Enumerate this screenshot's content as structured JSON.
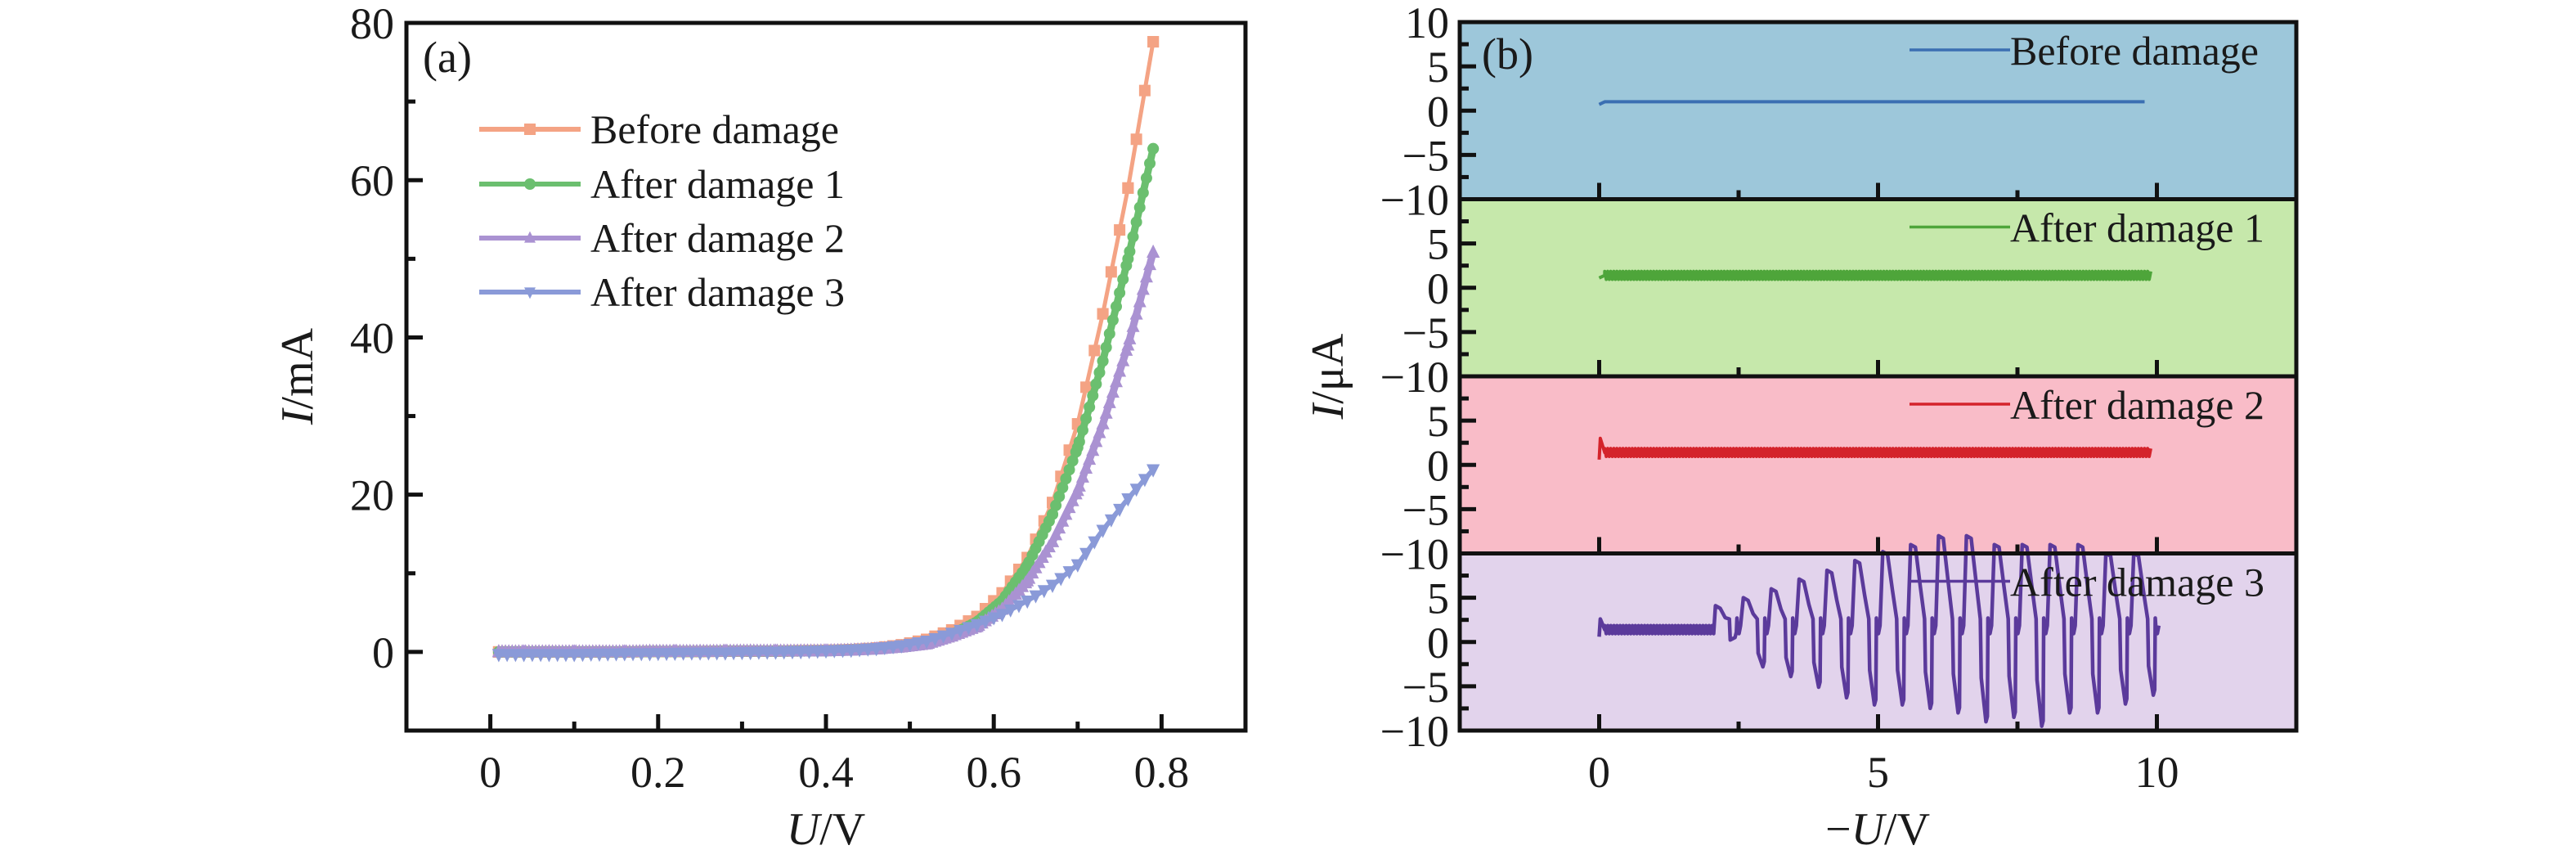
{
  "figure": {
    "panel_a_tag": "(a)",
    "panel_b_tag": "(b)"
  },
  "chart_data": [
    {
      "id": "a",
      "type": "line",
      "title": "",
      "tag": "(a)",
      "xlabel_italic": "U",
      "xlabel_unit": "/V",
      "ylabel_italic": "I",
      "ylabel_unit": "/mA",
      "xlim": [
        -0.1,
        0.9
      ],
      "ylim": [
        -10,
        80
      ],
      "xticks": [
        0,
        0.2,
        0.4,
        0.6,
        0.8
      ],
      "xtick_labels": [
        "0",
        "0.2",
        "0.4",
        "0.6",
        "0.8"
      ],
      "xminor": [
        0.1,
        0.3,
        0.5,
        0.7
      ],
      "yticks": [
        0,
        20,
        40,
        60,
        80
      ],
      "ytick_labels": [
        "0",
        "20",
        "40",
        "60",
        "80"
      ],
      "yminor": [
        10,
        30,
        50,
        70
      ],
      "grid": false,
      "legend_position": "top-left",
      "x": [
        0.01,
        0.04,
        0.07,
        0.1,
        0.13,
        0.16,
        0.19,
        0.22,
        0.25,
        0.28,
        0.31,
        0.34,
        0.37,
        0.4,
        0.43,
        0.46,
        0.49,
        0.52,
        0.55,
        0.58,
        0.61,
        0.64,
        0.67,
        0.7,
        0.73,
        0.76,
        0.79
      ],
      "series": [
        {
          "name": "Before damage",
          "color": "#F4A384",
          "marker": "square",
          "values": [
            0.0,
            0.0,
            0.0,
            0.0,
            0.0,
            0.0,
            0.05,
            0.05,
            0.05,
            0.1,
            0.1,
            0.1,
            0.15,
            0.2,
            0.3,
            0.5,
            0.9,
            1.6,
            2.8,
            4.5,
            7.5,
            12.0,
            19.0,
            29.0,
            43.0,
            59.0,
            77.6
          ]
        },
        {
          "name": "After damage 1",
          "color": "#6BBF6F",
          "marker": "circle",
          "values": [
            0.0,
            0.0,
            0.0,
            0.0,
            0.0,
            0.0,
            0.05,
            0.05,
            0.05,
            0.1,
            0.1,
            0.1,
            0.12,
            0.15,
            0.25,
            0.4,
            0.7,
            1.2,
            2.2,
            3.8,
            6.5,
            11.0,
            17.5,
            26.0,
            37.0,
            50.0,
            64.0
          ]
        },
        {
          "name": "After damage 2",
          "color": "#AA92D2",
          "marker": "triangle-up",
          "values": [
            0.0,
            0.0,
            0.0,
            0.0,
            0.0,
            0.0,
            0.05,
            0.05,
            0.05,
            0.08,
            0.1,
            0.1,
            0.1,
            0.12,
            0.2,
            0.35,
            0.6,
            1.0,
            2.0,
            3.2,
            5.4,
            9.0,
            14.0,
            20.5,
            29.0,
            39.0,
            50.8
          ]
        },
        {
          "name": "After damage 3",
          "color": "#8A9AD8",
          "marker": "triangle-down",
          "values": [
            -0.3,
            -0.3,
            -0.3,
            -0.3,
            -0.25,
            -0.2,
            -0.2,
            -0.15,
            -0.1,
            -0.1,
            -0.05,
            0.0,
            0.05,
            0.15,
            0.25,
            0.45,
            0.8,
            1.4,
            2.4,
            3.5,
            4.8,
            6.5,
            8.5,
            11.1,
            15.5,
            19.5,
            23.2
          ]
        }
      ]
    },
    {
      "id": "b",
      "type": "line",
      "title": "",
      "tag": "(b)",
      "xlabel_prefix": "−",
      "xlabel_italic": "U",
      "xlabel_unit": "/V",
      "ylabel_italic": "I",
      "ylabel_unit": "/μA",
      "xlim": [
        -2.5,
        12.5
      ],
      "ylim": [
        -10,
        10
      ],
      "xticks": [
        0,
        5,
        10
      ],
      "xtick_labels": [
        "0",
        "5",
        "10"
      ],
      "xminor": [
        2.5,
        7.5
      ],
      "yticks_top_panel": [
        "10",
        "5",
        "0",
        "−5",
        "−10"
      ],
      "yticks_other_panels": [
        "5",
        "0",
        "−5",
        "−10"
      ],
      "ytick_values": [
        10,
        5,
        0,
        -5,
        -10
      ],
      "yminor": [
        7.5,
        2.5,
        -2.5,
        -7.5
      ],
      "grid": false,
      "legend_position": "top-right",
      "panels": [
        {
          "name": "Before damage",
          "color": "#3B6FB2",
          "background": "#9DC7DA",
          "x_start": 0.0,
          "x_end": 9.8,
          "baseline": 1.0,
          "ripple": 0.0,
          "start_dip": 0.3
        },
        {
          "name": "After damage 1",
          "color": "#4EA53A",
          "background": "#C6E8AB",
          "x_start": 0.0,
          "x_end": 9.9,
          "baseline": 1.4,
          "ripple": 0.9,
          "start_dip": 0.3
        },
        {
          "name": "After damage 2",
          "color": "#D4232B",
          "background": "#F9BCC8",
          "x_start": 0.0,
          "x_end": 9.9,
          "baseline": 1.4,
          "ripple": 0.9,
          "start_spike": 3.0
        },
        {
          "name": "After damage 3",
          "color": "#5B3A9B",
          "background": "#E2D3EC",
          "x_start": 0.0,
          "x_end": 10.1,
          "baseline": 1.4,
          "ripple": 0.9,
          "start_spike": 2.6,
          "oscillation_start": 2.06,
          "oscillation_period": 0.5,
          "cycle_peaks": [
            4.1,
            5.0,
            6.0,
            7.1,
            8.1,
            9.2,
            10.2,
            11.0,
            12.0,
            12.0,
            11.0,
            11.0,
            11.0,
            11.0,
            10.0,
            10.0
          ],
          "cycle_troughs": [
            0.5,
            -2.8,
            -3.9,
            -5.1,
            -6.3,
            -7.1,
            -7.1,
            -7.5,
            -8.0,
            -9.0,
            -8.5,
            -9.5,
            -8.0,
            -8.0,
            -7.0,
            -6.0
          ]
        }
      ]
    }
  ]
}
